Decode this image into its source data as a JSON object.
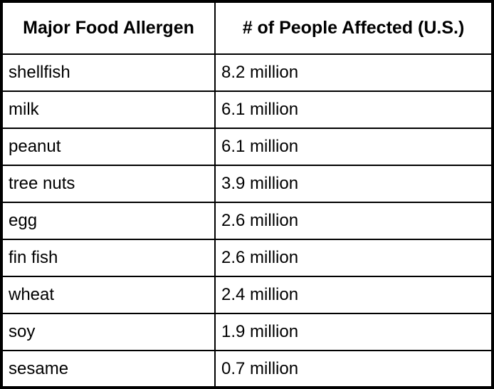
{
  "table": {
    "headers": {
      "allergen": "Major Food Allergen",
      "affected": "# of People Affected (U.S.)"
    },
    "rows": [
      {
        "allergen": "shellfish",
        "affected": "8.2 million"
      },
      {
        "allergen": "milk",
        "affected": "6.1 million"
      },
      {
        "allergen": "peanut",
        "affected": "6.1 million"
      },
      {
        "allergen": "tree nuts",
        "affected": "3.9 million"
      },
      {
        "allergen": "egg",
        "affected": "2.6 million"
      },
      {
        "allergen": "fin fish",
        "affected": "2.6 million"
      },
      {
        "allergen": "wheat",
        "affected": "2.4 million"
      },
      {
        "allergen": "soy",
        "affected": "1.9 million"
      },
      {
        "allergen": "sesame",
        "affected": "0.7 million"
      }
    ]
  },
  "chart_data": {
    "type": "table",
    "columns": [
      "Major Food Allergen",
      "# of People Affected (U.S.)"
    ],
    "categories": [
      "shellfish",
      "milk",
      "peanut",
      "tree nuts",
      "egg",
      "fin fish",
      "wheat",
      "soy",
      "sesame"
    ],
    "values": [
      8.2,
      6.1,
      6.1,
      3.9,
      2.6,
      2.6,
      2.4,
      1.9,
      0.7
    ],
    "unit": "million people (U.S.)"
  },
  "colors": {
    "border": "#000000",
    "text": "#000000",
    "background": "#ffffff"
  }
}
